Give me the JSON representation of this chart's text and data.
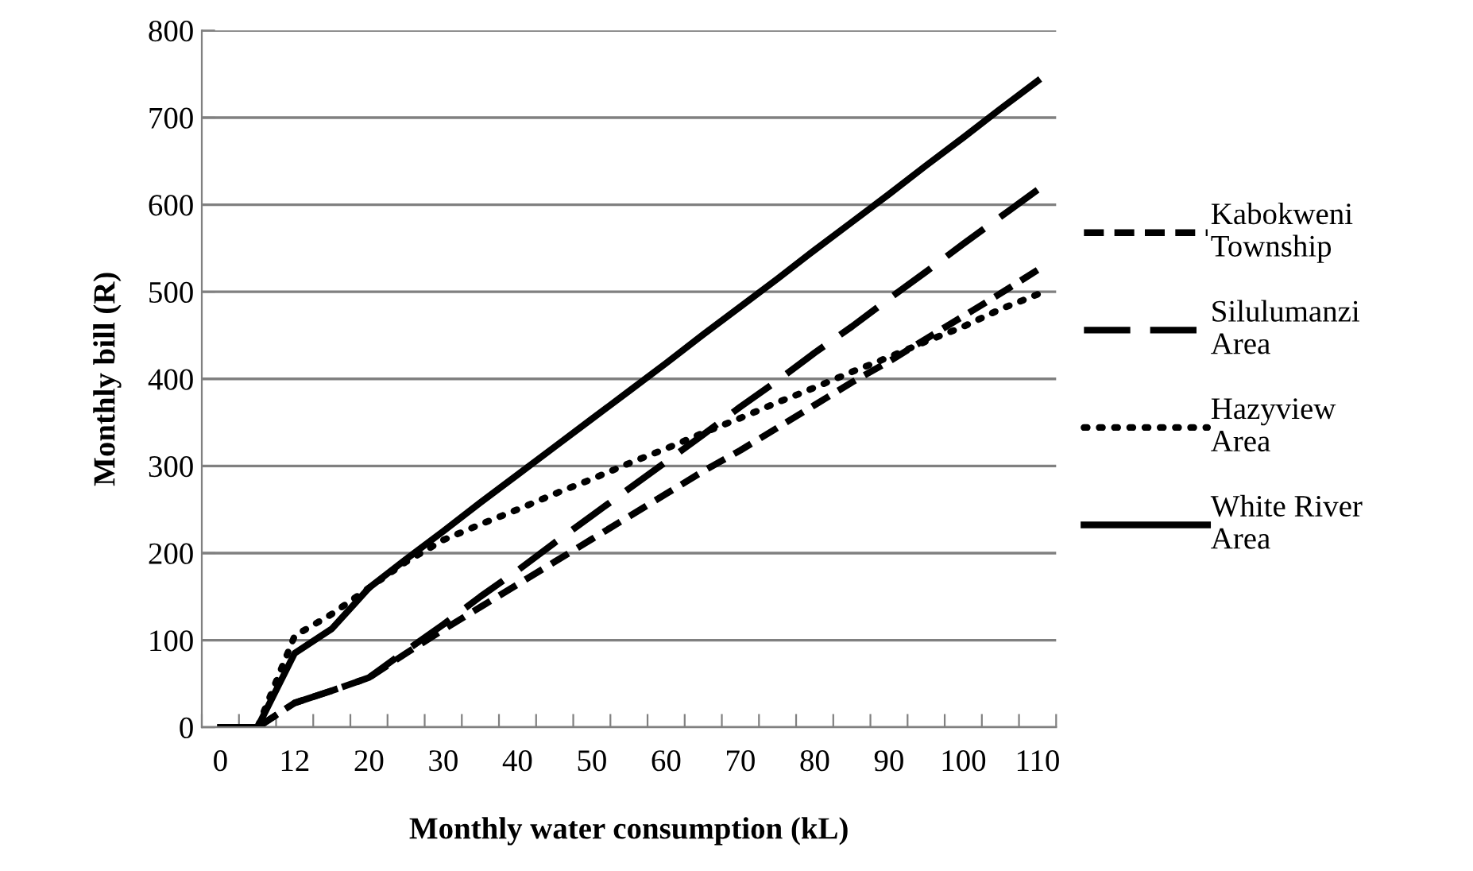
{
  "chart_data": {
    "type": "line",
    "xlabel": "Monthly water consumption (kL)",
    "ylabel": "Monthly bill (R)",
    "categories": [
      "0",
      null,
      "12",
      null,
      "20",
      null,
      "30",
      null,
      "40",
      null,
      "50",
      null,
      "60",
      null,
      "70",
      null,
      "80",
      null,
      "90",
      null,
      "100",
      null,
      "110"
    ],
    "series": [
      {
        "name": "Kabokweni\nTownship",
        "color": "#000000",
        "line_style": "dashed",
        "values": [
          0,
          0,
          28,
          42,
          57,
          85,
          112,
          138,
          164,
          190,
          216,
          242,
          268,
          294,
          318,
          344,
          370,
          396,
          420,
          446,
          472,
          498,
          525
        ]
      },
      {
        "name": "Silulumanzi\nArea",
        "color": "#000000",
        "line_style": "long dashed",
        "values": [
          0,
          0,
          28,
          42,
          57,
          88,
          118,
          150,
          180,
          212,
          243,
          274,
          305,
          336,
          368,
          398,
          430,
          460,
          492,
          523,
          555,
          586,
          617
        ]
      },
      {
        "name": "Hazyview\nArea",
        "color": "#000000",
        "line_style": "dotted",
        "values": [
          0,
          0,
          105,
          130,
          160,
          190,
          215,
          233,
          250,
          268,
          285,
          303,
          320,
          338,
          355,
          373,
          390,
          408,
          425,
          443,
          460,
          480,
          497
        ]
      },
      {
        "name": "White River\nArea",
        "color": "#000000",
        "line_style": "solid",
        "values": [
          0,
          0,
          85,
          113,
          160,
          193,
          225,
          258,
          290,
          322,
          354,
          386,
          418,
          451,
          483,
          515,
          548,
          580,
          612,
          645,
          677,
          710,
          742
        ]
      }
    ],
    "ylim": [
      0,
      800
    ],
    "yticks": [
      0,
      100,
      200,
      300,
      400,
      500,
      600,
      700,
      800
    ],
    "grid": "y",
    "legend": "right",
    "marker": "none"
  }
}
